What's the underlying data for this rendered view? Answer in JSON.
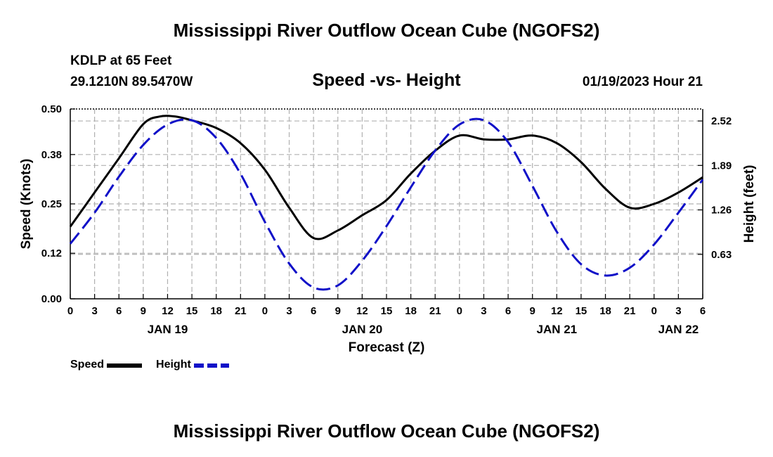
{
  "page": {
    "title_top": "Mississippi River Outflow Ocean Cube (NGOFS2)",
    "title_bottom": "Mississippi River Outflow Ocean Cube (NGOFS2)",
    "station": "KDLP at 65 Feet",
    "coordinates": "29.1210N  89.5470W",
    "subtitle": "Speed -vs- Height",
    "datetime": "01/19/2023 Hour 21"
  },
  "colors": {
    "speed": "#000000",
    "height": "#1010c8",
    "grid": "#b0b0b0"
  },
  "chart_data": {
    "type": "line",
    "title": "Speed -vs- Height",
    "xlabel": "Forecast (Z)",
    "ylabel": "Speed (Knots)",
    "y2label": "Height (feet)",
    "x_unit": "forecast hours from Jan 19 00Z",
    "xlim": [
      0,
      78
    ],
    "ylim": [
      0.0,
      0.5
    ],
    "y2lim": [
      0.0,
      2.69
    ],
    "x_ticks": [
      0,
      3,
      6,
      9,
      12,
      15,
      18,
      21,
      24,
      27,
      30,
      33,
      36,
      39,
      42,
      45,
      48,
      51,
      54,
      57,
      60,
      63,
      66,
      69,
      72,
      75,
      78
    ],
    "x_tick_labels": [
      "0",
      "3",
      "6",
      "9",
      "12",
      "15",
      "18",
      "21",
      "0",
      "3",
      "6",
      "9",
      "12",
      "15",
      "18",
      "21",
      "0",
      "3",
      "6",
      "9",
      "12",
      "15",
      "18",
      "21",
      "0",
      "3",
      "6"
    ],
    "date_labels": [
      {
        "x": 12,
        "label": "JAN 19"
      },
      {
        "x": 36,
        "label": "JAN 20"
      },
      {
        "x": 60,
        "label": "JAN 21"
      },
      {
        "x": 75,
        "label": "JAN 22"
      }
    ],
    "y_ticks": [
      0.0,
      0.12,
      0.25,
      0.38,
      0.5
    ],
    "y_tick_labels": [
      "0.00",
      "0.12",
      "0.25",
      "0.38",
      "0.50"
    ],
    "y2_ticks": [
      0.63,
      1.26,
      1.89,
      2.52
    ],
    "y2_tick_labels": [
      "0.63",
      "1.26",
      "1.89",
      "2.52"
    ],
    "grid": true,
    "legend": [
      {
        "name": "Speed",
        "style": "solid"
      },
      {
        "name": "Height",
        "style": "dashed"
      }
    ],
    "series": [
      {
        "name": "Speed",
        "axis": "left",
        "x": [
          0,
          3,
          6,
          9,
          11,
          13,
          15,
          18,
          21,
          24,
          27,
          30,
          33,
          36,
          39,
          42,
          45,
          48,
          51,
          54,
          57,
          60,
          63,
          66,
          69,
          72,
          75,
          78
        ],
        "values": [
          0.19,
          0.28,
          0.37,
          0.46,
          0.48,
          0.48,
          0.47,
          0.45,
          0.41,
          0.34,
          0.24,
          0.16,
          0.18,
          0.22,
          0.26,
          0.33,
          0.39,
          0.43,
          0.42,
          0.42,
          0.43,
          0.41,
          0.36,
          0.29,
          0.24,
          0.25,
          0.28,
          0.32
        ]
      },
      {
        "name": "Height",
        "axis": "right",
        "x": [
          0,
          3,
          6,
          9,
          12,
          15,
          18,
          21,
          24,
          27,
          30,
          33,
          36,
          39,
          42,
          45,
          48,
          51,
          54,
          57,
          60,
          63,
          66,
          69,
          72,
          75,
          78
        ],
        "values": [
          0.78,
          1.22,
          1.73,
          2.18,
          2.47,
          2.53,
          2.28,
          1.77,
          1.09,
          0.5,
          0.16,
          0.19,
          0.54,
          1.03,
          1.58,
          2.1,
          2.47,
          2.53,
          2.22,
          1.6,
          0.95,
          0.49,
          0.33,
          0.44,
          0.77,
          1.22,
          1.69
        ]
      }
    ]
  }
}
